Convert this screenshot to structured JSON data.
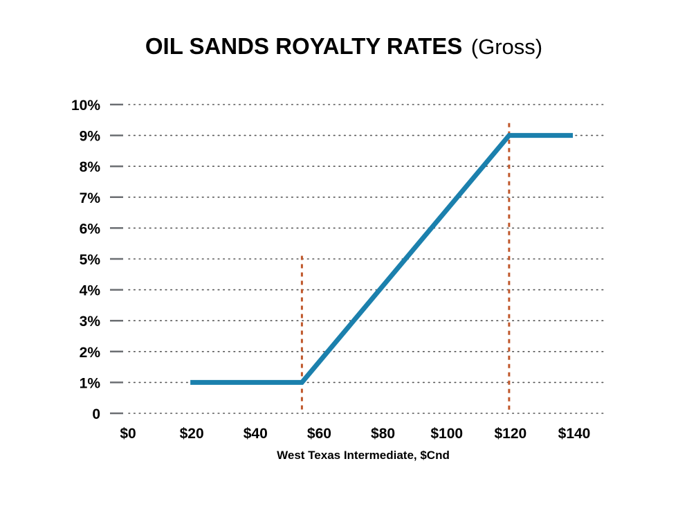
{
  "chart_data": {
    "type": "line",
    "title": "OIL SANDS ROYALTY RATES",
    "subtitle": "(Gross)",
    "xlabel": "West Texas Intermediate, $Cnd",
    "ylabel": "",
    "x_ticks": [
      "$0",
      "$20",
      "$40",
      "$60",
      "$80",
      "$100",
      "$120",
      "$140"
    ],
    "y_ticks": [
      "0",
      "1%",
      "2%",
      "3%",
      "4%",
      "5%",
      "6%",
      "7%",
      "8%",
      "9%",
      "10%"
    ],
    "xlim": [
      0,
      140
    ],
    "ylim": [
      0,
      10
    ],
    "grid": "horizontal dotted",
    "series": [
      {
        "x": [
          20,
          55,
          120,
          140
        ],
        "y": [
          1,
          1,
          9,
          9
        ],
        "color": "#1b80ad"
      }
    ],
    "reference_lines": [
      {
        "x": 55,
        "y_top": 5.1,
        "color": "#c0582c"
      },
      {
        "x": 120,
        "y_top": 9.4,
        "color": "#c0582c"
      }
    ],
    "colors": {
      "series": "#1b80ad",
      "reference": "#c0582c",
      "grid": "#555555",
      "tick_mark": "#6b6e72"
    }
  }
}
